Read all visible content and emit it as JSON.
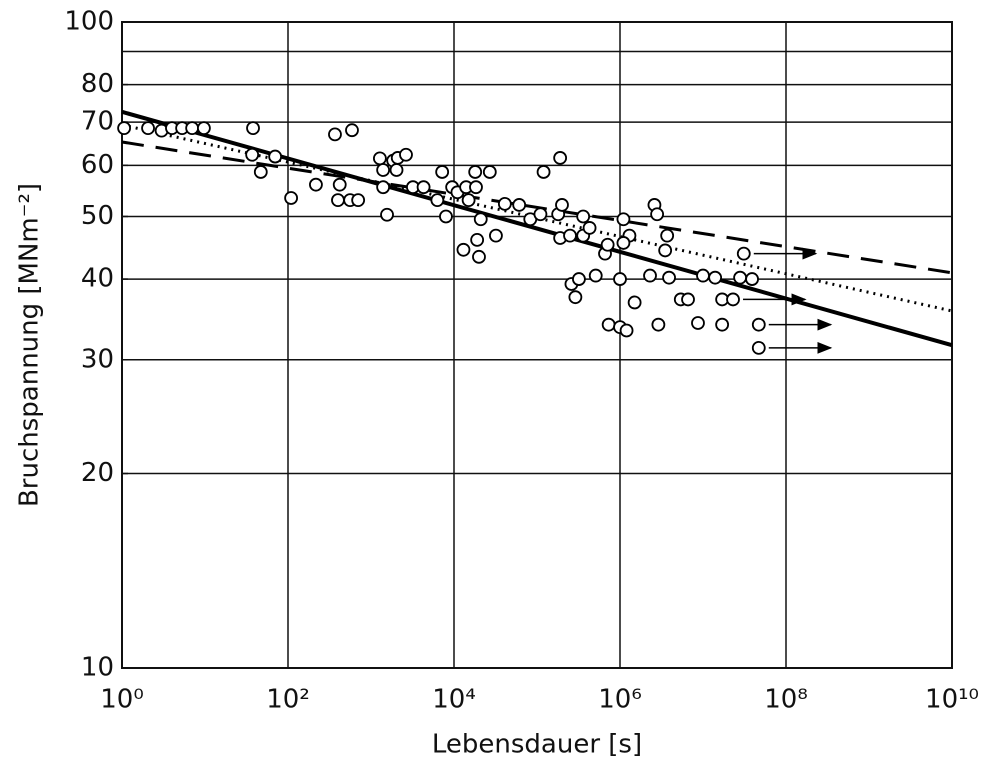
{
  "chart_data": {
    "type": "scatter",
    "x_label": "Lebensdauer   [s]",
    "y_label": "Bruchspannung   [MNm⁻²]",
    "log_x": true,
    "log_y": true,
    "grid": true,
    "xlim": [
      1,
      10000000000
    ],
    "ylim": [
      10,
      100
    ],
    "xticks": [
      {
        "value": 1,
        "label": "10⁰"
      },
      {
        "value": 100,
        "label": "10²"
      },
      {
        "value": 10000,
        "label": "10⁴"
      },
      {
        "value": 1000000,
        "label": "10⁶"
      },
      {
        "value": 100000000,
        "label": "10⁸"
      },
      {
        "value": 10000000000,
        "label": "10¹⁰"
      }
    ],
    "yticks": [
      10,
      20,
      30,
      40,
      50,
      60,
      70,
      80,
      100
    ],
    "ygrid": [
      20,
      30,
      40,
      50,
      60,
      70,
      80,
      90
    ],
    "series": [
      {
        "kind": "line",
        "style": "solid",
        "color": "#000000",
        "x": [
          1,
          10000000000
        ],
        "values": [
          72.6,
          31.6
        ]
      },
      {
        "kind": "line",
        "style": "dotted",
        "color": "#000000",
        "x": [
          1,
          10000000000
        ],
        "values": [
          69.3,
          35.7
        ]
      },
      {
        "kind": "line",
        "style": "dashed",
        "color": "#000000",
        "x": [
          1,
          10000000000
        ],
        "values": [
          65.2,
          40.9
        ]
      },
      {
        "kind": "points",
        "color": "#000000",
        "x": [
          1.06,
          2.06,
          3.0,
          4.0,
          5.3,
          7.0,
          9.7,
          37.9,
          37,
          47,
          70,
          109,
          217,
          368,
          590,
          420,
          400,
          560,
          700,
          1280,
          1400,
          1400,
          1560,
          1850,
          2030,
          2100,
          2640,
          3200,
          4300,
          6300,
          7200,
          8000,
          9500,
          11000,
          14000,
          15000,
          18400,
          13000,
          20000,
          19000,
          18000,
          27000,
          21000,
          32000,
          41000,
          61000,
          83000,
          110000,
          120000,
          180000,
          200000,
          190000,
          190000,
          250000,
          260000,
          290000,
          320000,
          360000,
          360000,
          430000,
          510000,
          660000,
          710000,
          730000,
          1000000,
          1000000,
          1100000,
          1200000,
          1300000,
          1500000,
          1100000,
          2300000,
          2600000,
          2800000,
          2900000,
          3500000,
          3700000,
          3900000,
          5400000,
          6600000,
          8700000,
          10000000,
          14000000,
          17000000,
          17000000,
          28000000,
          39000000
        ],
        "values": [
          68.5,
          68.5,
          67.9,
          68.5,
          68.5,
          68.5,
          68.5,
          68.5,
          62.3,
          58.6,
          61.9,
          53.4,
          56,
          67,
          68,
          56,
          53,
          53,
          53,
          61.5,
          59,
          55.5,
          50.3,
          61,
          59,
          61.6,
          62.3,
          55.5,
          55.5,
          53,
          58.6,
          50,
          55.5,
          54.5,
          55.5,
          53,
          55.5,
          44.4,
          43.3,
          46,
          58.6,
          58.6,
          49.5,
          46.7,
          52.3,
          52.1,
          49.5,
          50.4,
          58.6,
          50.4,
          52.1,
          61.6,
          46.3,
          46.7,
          39.3,
          37.5,
          40,
          46.7,
          50,
          48,
          40.5,
          43.8,
          45.2,
          34,
          40,
          33.7,
          49.5,
          33.3,
          46.7,
          36.8,
          45.5,
          40.5,
          52.1,
          50.4,
          34,
          44.3,
          46.7,
          40.2,
          37.2,
          37.2,
          34.2,
          40.5,
          40.2,
          37.2,
          34,
          40.2,
          40
        ]
      },
      {
        "kind": "points",
        "runout": true,
        "color": "#000000",
        "x": [
          31000000,
          23000000,
          47000000,
          47000000
        ],
        "values": [
          43.8,
          37.2,
          34,
          31.3
        ]
      }
    ]
  }
}
